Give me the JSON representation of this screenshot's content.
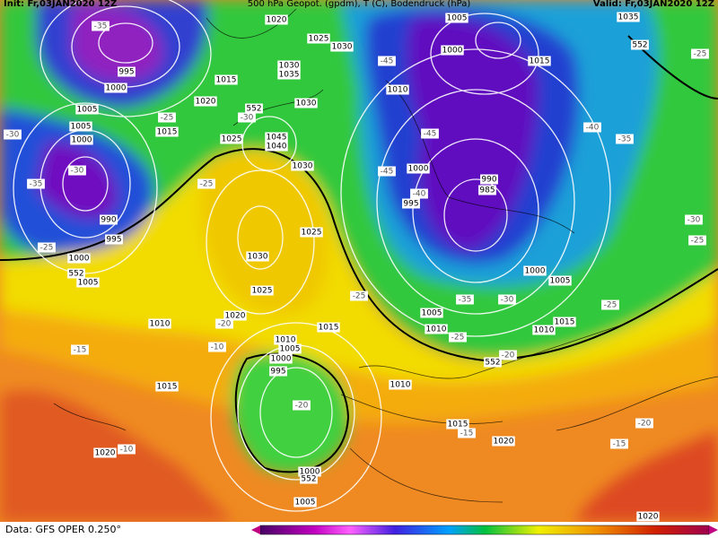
{
  "header": {
    "left": "Init: Fr,03JAN2020 12Z",
    "center": "500 hPa Geopot. (gpdm), T (C), Bodendruck (hPa)",
    "right": "Valid: Fr,03JAN2020 12Z"
  },
  "pressure_labels": [
    "1020",
    "1025",
    "1030",
    "1030",
    "1035",
    "1015",
    "1020",
    "1030",
    "1025",
    "1045",
    "1040",
    "1030",
    "1025",
    "1030",
    "1025",
    "1020",
    "1010",
    "1015",
    "1010",
    "1005",
    "1000",
    "995",
    "1010",
    "1015",
    "1020",
    "1015",
    "1020",
    "1000",
    "1005",
    "1020",
    "995",
    "1000",
    "1005",
    "1005",
    "1000",
    "1015",
    "990",
    "995",
    "1000",
    "1005",
    "1005",
    "1000",
    "1015",
    "1010",
    "1000",
    "990",
    "985",
    "995",
    "1000",
    "1005",
    "1005",
    "1010",
    "1010",
    "1015",
    "1035"
  ],
  "geopotential_labels": [
    "552",
    "552",
    "552",
    "552",
    "552"
  ],
  "temperature_labels": [
    "-35",
    "-30",
    "-35",
    "-25",
    "-30",
    "-25",
    "-30",
    "-25",
    "-45",
    "-45",
    "-45",
    "-40",
    "-40",
    "-35",
    "-25",
    "-30",
    "-25",
    "-25",
    "-20",
    "-35",
    "-30",
    "-25",
    "-25",
    "-20",
    "-15",
    "-10",
    "-20",
    "-15",
    "-10",
    "-20",
    "-15"
  ],
  "footer": "Data: GFS OPER 0.250°"
}
